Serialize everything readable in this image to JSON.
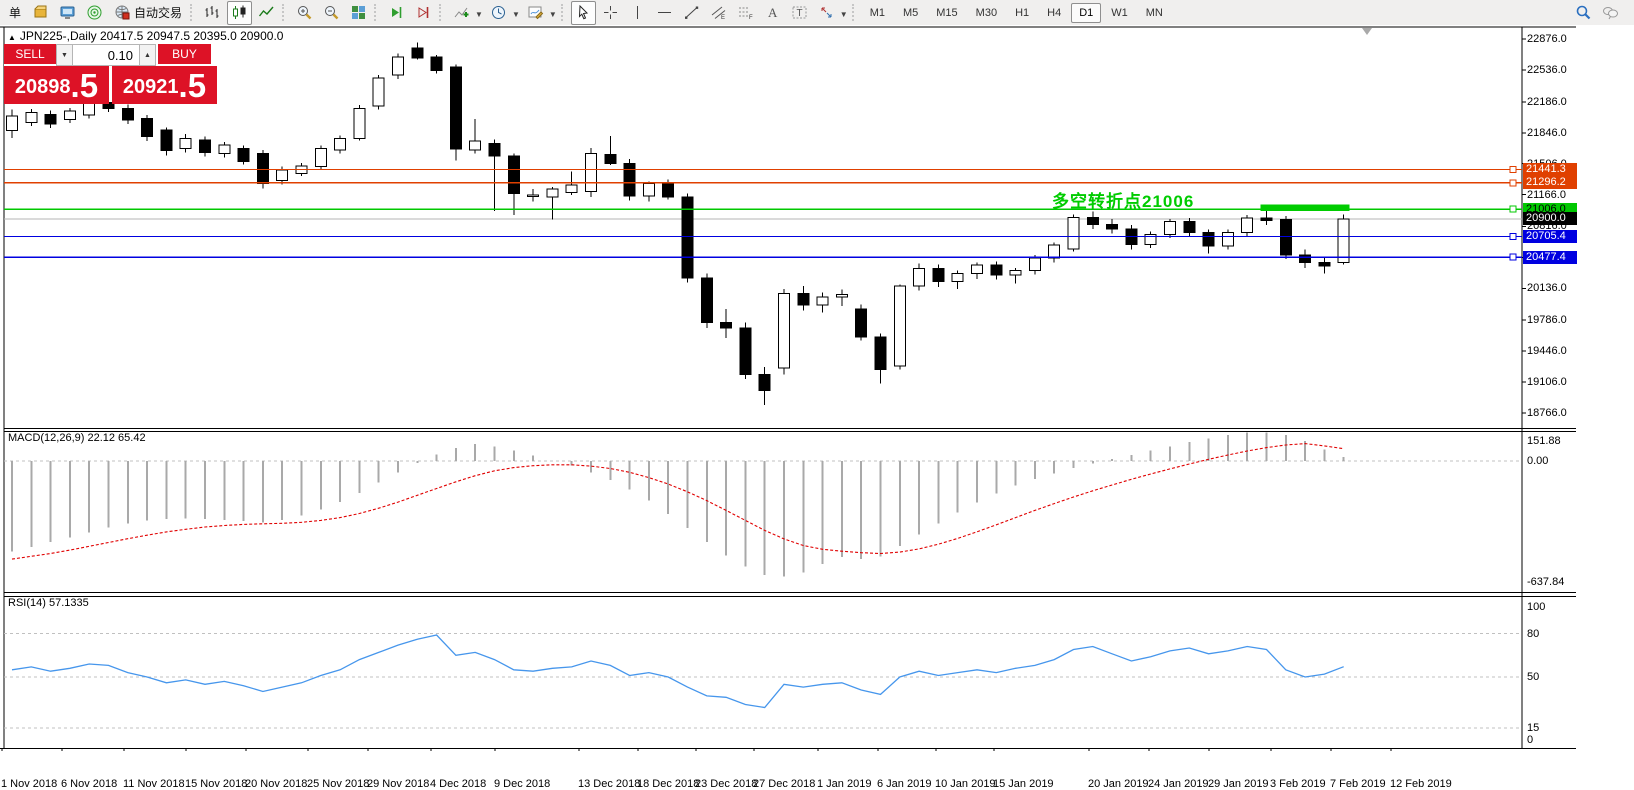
{
  "toolbar": {
    "groups": [
      {
        "items": [
          {
            "name": "new-order-button",
            "label": "单"
          },
          {
            "name": "order-box-button",
            "icon": "gold-box"
          },
          {
            "name": "market-watch-button",
            "icon": "blue-monitor"
          },
          {
            "name": "signals-button",
            "icon": "green-radar"
          },
          {
            "name": "autotrading-button",
            "icon": "autotrade",
            "label": "自动交易"
          }
        ]
      },
      {
        "items": [
          {
            "name": "bar-chart-button",
            "icon": "bars"
          },
          {
            "name": "candlestick-chart-button",
            "icon": "candles",
            "active": true
          },
          {
            "name": "line-chart-button",
            "icon": "linechart"
          }
        ]
      },
      {
        "items": [
          {
            "name": "zoom-in-button",
            "icon": "zoomin"
          },
          {
            "name": "zoom-out-button",
            "icon": "zoomout"
          },
          {
            "name": "tile-windows-button",
            "icon": "tiles"
          }
        ]
      },
      {
        "items": [
          {
            "name": "auto-scroll-button",
            "icon": "autoscroll"
          },
          {
            "name": "chart-shift-button",
            "icon": "chartshift"
          }
        ]
      },
      {
        "items": [
          {
            "name": "indicators-button",
            "icon": "indicators",
            "caret": true
          },
          {
            "name": "periods-button",
            "icon": "clock",
            "caret": true
          },
          {
            "name": "templates-button",
            "icon": "template",
            "caret": true
          }
        ]
      },
      {
        "items": [
          {
            "name": "cursor-button",
            "icon": "cursor",
            "active": true
          },
          {
            "name": "crosshair-button",
            "icon": "crosshair"
          },
          {
            "name": "vertical-line-button",
            "icon": "vline"
          },
          {
            "name": "horizontal-line-button",
            "icon": "hline"
          },
          {
            "name": "trendline-button",
            "icon": "trendline"
          },
          {
            "name": "equidistant-channel-button",
            "icon": "channel"
          },
          {
            "name": "fibonacci-button",
            "icon": "fibonacci"
          },
          {
            "name": "text-tool-button",
            "icon": "text-a"
          },
          {
            "name": "label-tool-button",
            "icon": "label-t"
          },
          {
            "name": "arrows-tool-button",
            "icon": "arrows",
            "caret": true
          }
        ]
      },
      {
        "timeframes": true,
        "items": [
          {
            "name": "tf-m1",
            "label": "M1"
          },
          {
            "name": "tf-m5",
            "label": "M5"
          },
          {
            "name": "tf-m15",
            "label": "M15"
          },
          {
            "name": "tf-m30",
            "label": "M30"
          },
          {
            "name": "tf-h1",
            "label": "H1"
          },
          {
            "name": "tf-h4",
            "label": "H4"
          },
          {
            "name": "tf-d1",
            "label": "D1",
            "active": true
          },
          {
            "name": "tf-w1",
            "label": "W1"
          },
          {
            "name": "tf-mn",
            "label": "MN"
          }
        ]
      }
    ],
    "right_icons": [
      {
        "name": "search-icon",
        "icon": "search"
      },
      {
        "name": "chat-icon",
        "icon": "chat"
      }
    ]
  },
  "one_click": {
    "sell_label": "SELL",
    "buy_label": "BUY",
    "lot": "0.10",
    "sell_price_main": "20898",
    "sell_price_frac": ".5",
    "buy_price_main": "20921",
    "buy_price_frac": ".5"
  },
  "chart_data": [
    {
      "type": "candlestick",
      "symbol": "JPN225-",
      "period": "Daily",
      "title_text": "JPN225-,Daily  20417.5 20947.5 20395.0 20900.0",
      "current": {
        "open": 20417.5,
        "high": 20947.5,
        "low": 20395.0,
        "close": 20900.0,
        "bid": 20898.5,
        "ask": 20921.5
      },
      "ylim": [
        18610,
        23010
      ],
      "y_ticks": [
        "22876.0",
        "22536.0",
        "22186.0",
        "21846.0",
        "21506.0",
        "21166.0",
        "20816.0",
        "20476.0",
        "20136.0",
        "19786.0",
        "19446.0",
        "19106.0",
        "18766.0"
      ],
      "y_tick_values": [
        22876,
        22536,
        22186,
        21846,
        21506,
        21166,
        20816,
        20476,
        20136,
        19786,
        19446,
        19106,
        18766
      ],
      "x_labels": [
        "1 Nov 2018",
        "6 Nov 2018",
        "11 Nov 2018",
        "15 Nov 2018",
        "20 Nov 2018",
        "25 Nov 2018",
        "29 Nov 2018",
        "4 Dec 2018",
        "9 Dec 2018",
        "13 Dec 2018",
        "18 Dec 2018",
        "23 Dec 2018",
        "27 Dec 2018",
        "1 Jan 2019",
        "6 Jan 2019",
        "10 Jan 2019",
        "15 Jan 2019",
        "20 Jan 2019",
        "24 Jan 2019",
        "29 Jan 2019",
        "3 Feb 2019",
        "7 Feb 2019",
        "12 Feb 2019"
      ],
      "levels": [
        {
          "price": 21441.3,
          "label": "21441.3",
          "color": "#E04000",
          "text_color": "#ffffff",
          "line": true
        },
        {
          "price": 21296.2,
          "label": "21296.2",
          "color": "#E04000",
          "text_color": "#ffffff",
          "line": true
        },
        {
          "price": 21006.0,
          "label": "21006.0",
          "color": "#00C800",
          "text_color": "#000000",
          "line": true
        },
        {
          "price": 20900.0,
          "label": "20900.0",
          "color": "#000000",
          "text_color": "#ffffff",
          "line": false
        },
        {
          "price": 20705.4,
          "label": "20705.4",
          "color": "#0000E0",
          "text_color": "#ffffff",
          "line": true
        },
        {
          "price": 20477.4,
          "label": "20477.4",
          "color": "#0000E0",
          "text_color": "#ffffff",
          "line": true
        }
      ],
      "bid_line": {
        "price": 20898.5,
        "color": "#B4B4B4"
      },
      "annotation": {
        "text": "多空转折点21006",
        "color": "#00CC00"
      },
      "highlight_bar": {
        "price_top": 21060,
        "price_bottom": 20985,
        "bar_start": 65,
        "bar_end": 69,
        "color": "#00CC00"
      },
      "candles": [
        [
          21870,
          22100,
          21790,
          22030
        ],
        [
          21960,
          22110,
          21920,
          22070
        ],
        [
          22050,
          22090,
          21900,
          21945
        ],
        [
          21990,
          22120,
          21955,
          22085
        ],
        [
          22040,
          22205,
          22005,
          22170
        ],
        [
          22180,
          22240,
          22075,
          22115
        ],
        [
          22115,
          22160,
          21945,
          21985
        ],
        [
          22005,
          22040,
          21755,
          21805
        ],
        [
          21875,
          21905,
          21595,
          21650
        ],
        [
          21675,
          21835,
          21630,
          21785
        ],
        [
          21765,
          21805,
          21585,
          21630
        ],
        [
          21620,
          21745,
          21575,
          21710
        ],
        [
          21675,
          21705,
          21495,
          21530
        ],
        [
          21620,
          21655,
          21235,
          21290
        ],
        [
          21320,
          21475,
          21275,
          21435
        ],
        [
          21400,
          21515,
          21370,
          21480
        ],
        [
          21475,
          21705,
          21440,
          21675
        ],
        [
          21655,
          21815,
          21620,
          21785
        ],
        [
          21785,
          22150,
          21760,
          22115
        ],
        [
          22140,
          22480,
          22100,
          22450
        ],
        [
          22480,
          22720,
          22440,
          22680
        ],
        [
          22780,
          22840,
          22650,
          22670
        ],
        [
          22680,
          22700,
          22500,
          22530
        ],
        [
          22570,
          22600,
          21540,
          21670
        ],
        [
          21655,
          22000,
          21620,
          21755
        ],
        [
          21730,
          21770,
          20985,
          21590
        ],
        [
          21590,
          21620,
          20940,
          21180
        ],
        [
          21150,
          21230,
          21090,
          21160
        ],
        [
          21140,
          21250,
          20890,
          21230
        ],
        [
          21190,
          21420,
          21160,
          21270
        ],
        [
          21200,
          21680,
          21140,
          21620
        ],
        [
          21610,
          21810,
          21490,
          21510
        ],
        [
          21510,
          21560,
          21100,
          21150
        ],
        [
          21150,
          21310,
          21090,
          21290
        ],
        [
          21290,
          21330,
          21110,
          21140
        ],
        [
          21140,
          21180,
          20200,
          20250
        ],
        [
          20250,
          20300,
          19700,
          19760
        ],
        [
          19760,
          19910,
          19590,
          19700
        ],
        [
          19700,
          19760,
          19140,
          19190
        ],
        [
          19190,
          19270,
          18850,
          19010
        ],
        [
          19260,
          20130,
          19190,
          20080
        ],
        [
          20080,
          20160,
          19890,
          19950
        ],
        [
          19950,
          20090,
          19870,
          20040
        ],
        [
          20040,
          20120,
          19940,
          20070
        ],
        [
          19910,
          19960,
          19560,
          19600
        ],
        [
          19600,
          19640,
          19090,
          19240
        ],
        [
          19280,
          20180,
          19240,
          20160
        ],
        [
          20160,
          20410,
          20110,
          20355
        ],
        [
          20355,
          20400,
          20150,
          20210
        ],
        [
          20210,
          20330,
          20130,
          20300
        ],
        [
          20300,
          20420,
          20240,
          20390
        ],
        [
          20390,
          20430,
          20230,
          20280
        ],
        [
          20280,
          20360,
          20190,
          20330
        ],
        [
          20330,
          20500,
          20290,
          20470
        ],
        [
          20470,
          20640,
          20420,
          20610
        ],
        [
          20570,
          20950,
          20540,
          20915
        ],
        [
          20915,
          20980,
          20790,
          20840
        ],
        [
          20840,
          20900,
          20740,
          20790
        ],
        [
          20790,
          20830,
          20560,
          20620
        ],
        [
          20620,
          20760,
          20580,
          20730
        ],
        [
          20730,
          20900,
          20690,
          20870
        ],
        [
          20870,
          20910,
          20700,
          20750
        ],
        [
          20750,
          20780,
          20520,
          20600
        ],
        [
          20600,
          20780,
          20560,
          20750
        ],
        [
          20750,
          20940,
          20710,
          20910
        ],
        [
          20910,
          21015,
          20830,
          20880
        ],
        [
          20890,
          20930,
          20460,
          20500
        ],
        [
          20500,
          20560,
          20360,
          20420
        ],
        [
          20420,
          20470,
          20300,
          20380
        ],
        [
          20417.5,
          20947.5,
          20395.0,
          20900.0
        ]
      ]
    },
    {
      "type": "macd",
      "label_text": "MACD(12,26,9) 22.12 65.42",
      "name": "MACD",
      "params": "12,26,9",
      "main_value": 22.12,
      "signal_value": 65.42,
      "y_labels": [
        "151.88",
        "0.00",
        "-637.84"
      ],
      "ylim": [
        -650,
        155
      ],
      "histogram_color": "#A9A9A9",
      "signal_color": "#E00000",
      "histogram": [
        -480,
        -455,
        -430,
        -405,
        -378,
        -352,
        -330,
        -315,
        -308,
        -305,
        -308,
        -312,
        -318,
        -325,
        -312,
        -290,
        -258,
        -218,
        -170,
        -115,
        -60,
        -10,
        35,
        70,
        90,
        78,
        55,
        28,
        0,
        -25,
        -60,
        -100,
        -150,
        -210,
        -280,
        -355,
        -430,
        -500,
        -560,
        -605,
        -612,
        -590,
        -545,
        -510,
        -520,
        -505,
        -450,
        -390,
        -330,
        -272,
        -220,
        -172,
        -130,
        -95,
        -65,
        -38,
        -12,
        10,
        32,
        55,
        78,
        100,
        120,
        138,
        150,
        152,
        138,
        105,
        60,
        22.12
      ],
      "signal": [
        -520,
        -505,
        -490,
        -472,
        -452,
        -432,
        -412,
        -393,
        -376,
        -362,
        -350,
        -342,
        -336,
        -333,
        -330,
        -325,
        -315,
        -300,
        -278,
        -250,
        -218,
        -182,
        -146,
        -110,
        -78,
        -52,
        -35,
        -25,
        -20,
        -20,
        -27,
        -40,
        -60,
        -88,
        -122,
        -163,
        -210,
        -262,
        -315,
        -368,
        -413,
        -448,
        -468,
        -478,
        -486,
        -490,
        -483,
        -466,
        -441,
        -410,
        -375,
        -338,
        -300,
        -262,
        -226,
        -191,
        -158,
        -127,
        -97,
        -69,
        -42,
        -16,
        9,
        32,
        53,
        71,
        85,
        92,
        80,
        65.42
      ]
    },
    {
      "type": "line",
      "label_text": "RSI(14) 57.1335",
      "name": "RSI",
      "params": "14",
      "value": 57.1335,
      "y_labels": [
        "100",
        "80",
        "50",
        "15",
        "0"
      ],
      "gridlines": [
        80,
        50,
        15
      ],
      "ylim": [
        0,
        100
      ],
      "line_color": "#4696EC",
      "values": [
        55,
        57,
        54,
        56,
        59,
        58,
        53,
        50,
        46,
        48,
        45,
        47,
        44,
        40,
        43,
        46,
        51,
        55,
        62,
        67,
        72,
        76,
        79,
        65,
        67,
        62,
        55,
        54,
        56,
        57,
        61,
        58,
        51,
        53,
        50,
        43,
        37,
        36,
        31,
        29,
        45,
        43,
        45,
        46,
        41,
        38,
        50,
        54,
        51,
        53,
        55,
        53,
        56,
        58,
        62,
        69,
        71,
        66,
        61,
        64,
        68,
        70,
        66,
        68,
        71,
        69,
        55,
        50,
        52,
        57.13
      ]
    }
  ]
}
